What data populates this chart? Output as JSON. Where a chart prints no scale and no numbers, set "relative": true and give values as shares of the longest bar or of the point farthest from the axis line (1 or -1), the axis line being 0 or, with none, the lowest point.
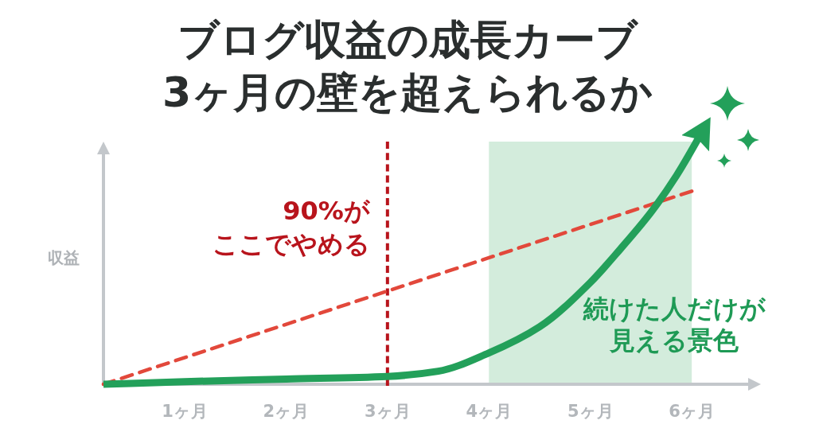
{
  "chart_data": {
    "type": "line",
    "title": "ブログ収益の成長カーブ",
    "subtitle": "3ヶ月の壁を超えられるか",
    "ylabel": "収益",
    "relative": true,
    "xlim": [
      0.2,
      6.65
    ],
    "xticks": [
      {
        "value": 1,
        "label": "1ヶ月"
      },
      {
        "value": 2,
        "label": "2ヶ月"
      },
      {
        "value": 3,
        "label": "3ヶ月"
      },
      {
        "value": 4,
        "label": "4ヶ月"
      },
      {
        "value": 5,
        "label": "5ヶ月"
      },
      {
        "value": 6,
        "label": "6ヶ月"
      }
    ],
    "series": [
      {
        "color": "#e2483b",
        "line_style": "dashed",
        "x": [
          0.2,
          6.0
        ],
        "values": [
          0,
          0.74
        ]
      },
      {
        "color": "#23a05a",
        "line_style": "solid",
        "x": [
          0.2,
          1,
          2,
          3,
          3.5,
          4,
          4.5,
          5,
          5.3,
          5.6,
          5.85,
          6.15
        ],
        "values": [
          0,
          0.01,
          0.02,
          0.03,
          0.05,
          0.12,
          0.22,
          0.39,
          0.52,
          0.66,
          0.8,
          1
        ]
      }
    ],
    "ref_lines": [
      {
        "axis": "x",
        "value": 3,
        "label": "90%がここでやめる",
        "color": "#b8141c",
        "line_style": "dashed"
      }
    ],
    "bands": [
      {
        "axis": "x",
        "from": 4,
        "to": 6,
        "label": "続けた人だけが見える景色",
        "color": "#d3ecdc"
      }
    ]
  }
}
